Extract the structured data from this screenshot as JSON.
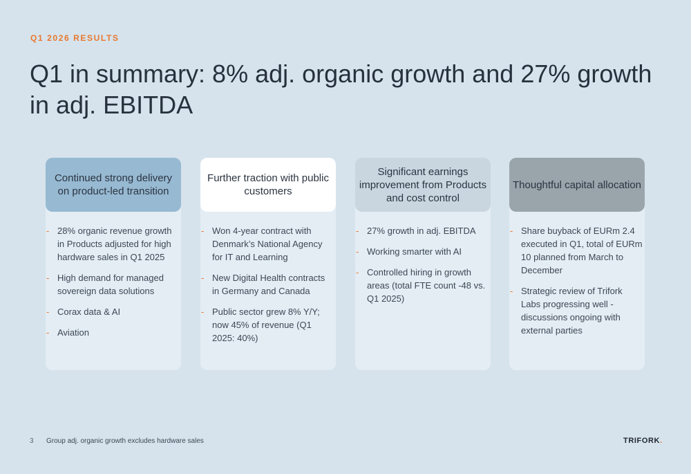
{
  "eyebrow": "Q1 2026 RESULTS",
  "title": "Q1 in summary: 8% adj. organic growth and 27% growth in adj. EBITDA",
  "colors": {
    "accent": "#e8782f",
    "background": "#d6e3ec",
    "card": "#e4edf4",
    "header_1": "#97b9d2",
    "header_2": "#ffffff",
    "header_3": "#c9d6e0",
    "header_4": "#9aa4ab"
  },
  "columns": [
    {
      "header": "Continued strong delivery on product-led transition",
      "bullets": [
        "28% organic revenue growth in Products adjusted for high hardware sales in Q1 2025",
        "High demand for managed sovereign data solutions",
        "Corax data & AI",
        "Aviation"
      ]
    },
    {
      "header": "Further traction with public customers",
      "bullets": [
        "Won 4-year contract with Denmark’s National Agency for IT and Learning",
        "New Digital Health contracts in Germany and Canada",
        "Public sector grew 8% Y/Y; now 45% of revenue (Q1 2025: 40%)"
      ]
    },
    {
      "header": "Significant earnings improvement from Products and cost control",
      "bullets": [
        "27% growth in adj. EBITDA",
        "Working smarter with AI",
        "Controlled hiring in growth areas (total FTE count -48 vs. Q1 2025)"
      ]
    },
    {
      "header": "Thoughtful capital allocation",
      "bullets": [
        "Share buyback of EURm 2.4 executed in Q1, total of EURm 10 planned from March to December",
        "Strategic review of Trifork Labs progressing well - discussions ongoing with external parties"
      ]
    }
  ],
  "bullet_marker": "-",
  "footer": {
    "page_number": "3",
    "note": "Group adj. organic growth excludes hardware sales",
    "logo_text": "TRIFORK",
    "logo_dot": "."
  }
}
